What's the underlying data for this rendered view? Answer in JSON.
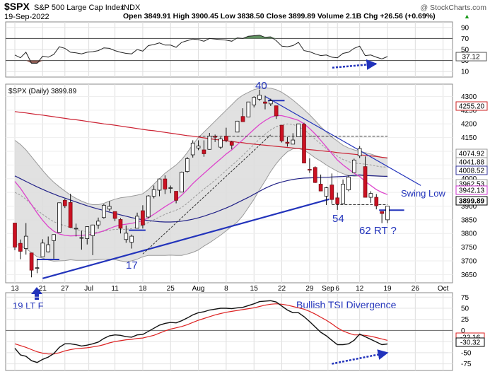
{
  "header": {
    "symbol": "$SPX",
    "name": "S&P 500 Large Cap Index",
    "exchange": "INDX",
    "date": "19-Sep-2022",
    "ohlc": "Open 3849.91  High 3900.45  Low 3838.50  Close 3899.89  Volume 2.1B  Chg +26.56 (+0.69%)",
    "arrow": "▲",
    "watermark": "@ StockCharts.com"
  },
  "rsi_panel": {
    "ticks": [
      "90",
      "70",
      "50",
      "30",
      "10"
    ],
    "last_label": "37.12",
    "last_value": 37.12
  },
  "price_panel": {
    "legend": "$SPX (Daily) 3899.89",
    "ticks": [
      "4300",
      "4250",
      "4200",
      "4150",
      "4100",
      "4050",
      "4000",
      "3950",
      "3900",
      "3850",
      "3800",
      "3750",
      "3700",
      "3650"
    ],
    "tags": [
      "4255.20",
      "4074.92",
      "4041.88",
      "4008.52",
      "3962.53",
      "3942.13",
      "3899.89"
    ],
    "tag_values": [
      4255.2,
      4074.92,
      4041.88,
      4008.52,
      3962.53,
      3942.13,
      3899.89
    ],
    "tag_colors": [
      "#cc2222",
      "#999999",
      "#999999",
      "#333399",
      "#999999",
      "#cc33cc",
      "#000000"
    ],
    "annotations": {
      "label_40": "40",
      "label_17": "17",
      "label_54": "54",
      "label_62": "62 RT ?",
      "swing_low": "Swing Low"
    }
  },
  "x_axis": {
    "labels": [
      "13",
      "21",
      "27",
      "Jul",
      "11",
      "18",
      "25",
      "Aug",
      "8",
      "15",
      "22",
      "29",
      "Sep",
      "6",
      "12",
      "19",
      "26",
      "Oct"
    ]
  },
  "tsi_panel": {
    "ticks": [
      "75",
      "50",
      "25",
      "0",
      "-25",
      "-50",
      "-75"
    ],
    "tags": [
      "-22.16",
      "-30.32"
    ],
    "tag_values": [
      -22.16,
      -30.32
    ],
    "annotation": "Bullish TSI Divergence",
    "note": "19 LT F"
  },
  "colors": {
    "up": "#ffffff",
    "down": "#cc1122",
    "annotation": "#2233bb",
    "ma_red": "#cc2233",
    "ma_blue": "#222288",
    "ma_magenta": "#dd44cc"
  },
  "chart_data": {
    "type": "line",
    "x": [
      "2022-06-13",
      "2022-06-14",
      "2022-06-15",
      "2022-06-16",
      "2022-06-17",
      "2022-06-21",
      "2022-06-22",
      "2022-06-23",
      "2022-06-24",
      "2022-06-27",
      "2022-06-28",
      "2022-06-29",
      "2022-06-30",
      "2022-07-01",
      "2022-07-05",
      "2022-07-06",
      "2022-07-07",
      "2022-07-08",
      "2022-07-11",
      "2022-07-12",
      "2022-07-13",
      "2022-07-14",
      "2022-07-15",
      "2022-07-18",
      "2022-07-19",
      "2022-07-20",
      "2022-07-21",
      "2022-07-22",
      "2022-07-25",
      "2022-07-26",
      "2022-07-27",
      "2022-07-28",
      "2022-07-29",
      "2022-08-01",
      "2022-08-02",
      "2022-08-03",
      "2022-08-04",
      "2022-08-05",
      "2022-08-08",
      "2022-08-09",
      "2022-08-10",
      "2022-08-11",
      "2022-08-12",
      "2022-08-15",
      "2022-08-16",
      "2022-08-17",
      "2022-08-18",
      "2022-08-19",
      "2022-08-22",
      "2022-08-23",
      "2022-08-24",
      "2022-08-25",
      "2022-08-26",
      "2022-08-29",
      "2022-08-30",
      "2022-08-31",
      "2022-09-01",
      "2022-09-02",
      "2022-09-06",
      "2022-09-07",
      "2022-09-08",
      "2022-09-09",
      "2022-09-12",
      "2022-09-13",
      "2022-09-14",
      "2022-09-15",
      "2022-09-16",
      "2022-09-19"
    ],
    "series": [
      {
        "name": "$SPX",
        "values": [
          3750,
          3735,
          3790,
          3666,
          3675,
          3765,
          3759,
          3796,
          3912,
          3901,
          3822,
          3819,
          3785,
          3825,
          3831,
          3845,
          3903,
          3899,
          3855,
          3819,
          3801,
          3790,
          3863,
          3831,
          3937,
          3960,
          3999,
          3962,
          3967,
          3921,
          4024,
          4073,
          4130,
          4119,
          4091,
          4155,
          4152,
          4145,
          4140,
          4122,
          4210,
          4208,
          4280,
          4297,
          4305,
          4275,
          4284,
          4229,
          4138,
          4129,
          4141,
          4200,
          4057,
          4031,
          3986,
          3955,
          3967,
          3924,
          3908,
          3980,
          4006,
          4068,
          4110,
          3932,
          3946,
          3901,
          3873,
          3900
        ]
      }
    ],
    "ohlc": {
      "open": [
        3838,
        3764,
        3745,
        3729,
        3675,
        3715,
        3733,
        3774,
        3804,
        3921,
        3913,
        3819,
        3785,
        3781,
        3792,
        3831,
        3858,
        3889,
        3880,
        3851,
        3778,
        3768,
        3819,
        3883,
        3860,
        3936,
        3958,
        3999,
        3966,
        3954,
        3951,
        4026,
        4087,
        4112,
        4105,
        4107,
        4154,
        4115,
        4155,
        4134,
        4170,
        4227,
        4225,
        4269,
        4290,
        4280,
        4273,
        4266,
        4195,
        4133,
        4126,
        4153,
        4199,
        4034,
        4041,
        3980,
        3936,
        3977,
        3930,
        3909,
        3959,
        4022,
        4083,
        4044,
        3932,
        3932,
        3880,
        3850
      ],
      "high": [
        3838,
        3778,
        3838,
        3729,
        3708,
        3779,
        3789,
        3797,
        3913,
        3927,
        3945,
        3836,
        3810,
        3826,
        3832,
        3858,
        3907,
        3918,
        3880,
        3856,
        3829,
        3796,
        3876,
        3903,
        3940,
        3975,
        4000,
        4012,
        3975,
        3954,
        4026,
        4079,
        4140,
        4140,
        4140,
        4167,
        4161,
        4152,
        4186,
        4138,
        4211,
        4257,
        4280,
        4301,
        4325,
        4303,
        4292,
        4266,
        4196,
        4152,
        4166,
        4200,
        4204,
        4074,
        4045,
        4015,
        3970,
        4019,
        3949,
        3997,
        4012,
        4073,
        4119,
        4081,
        3954,
        3944,
        3880,
        3901
      ],
      "low": [
        3739,
        3706,
        3723,
        3640,
        3655,
        3715,
        3731,
        3708,
        3804,
        3893,
        3820,
        3789,
        3741,
        3760,
        3721,
        3817,
        3854,
        3882,
        3845,
        3800,
        3766,
        3745,
        3819,
        3818,
        3855,
        3928,
        3936,
        3944,
        3947,
        3910,
        3951,
        4022,
        4077,
        4104,
        4080,
        4106,
        4134,
        4108,
        4133,
        4107,
        4170,
        4207,
        4225,
        4260,
        4284,
        4253,
        4265,
        4218,
        4132,
        4117,
        4126,
        4153,
        4057,
        4021,
        3984,
        3954,
        3904,
        3908,
        3886,
        3909,
        3954,
        4022,
        4075,
        3932,
        3912,
        3888,
        3838,
        3838
      ],
      "close": [
        3750,
        3735,
        3790,
        3666,
        3675,
        3765,
        3759,
        3796,
        3912,
        3901,
        3822,
        3819,
        3785,
        3825,
        3831,
        3845,
        3903,
        3899,
        3855,
        3819,
        3801,
        3790,
        3863,
        3831,
        3937,
        3960,
        3999,
        3962,
        3967,
        3921,
        4024,
        4073,
        4130,
        4119,
        4091,
        4155,
        4152,
        4145,
        4140,
        4122,
        4210,
        4208,
        4280,
        4297,
        4305,
        4275,
        4284,
        4229,
        4138,
        4129,
        4141,
        4200,
        4057,
        4031,
        3986,
        3955,
        3967,
        3924,
        3908,
        3980,
        4006,
        4068,
        4110,
        3932,
        3946,
        3901,
        3873,
        3900
      ]
    },
    "moving_averages": {
      "ma_red_long": [
        4245,
        4242,
        4240,
        4237,
        4234,
        4232,
        4229,
        4226,
        4223,
        4220,
        4217,
        4215,
        4212,
        4209,
        4206,
        4203,
        4200,
        4198,
        4195,
        4192,
        4189,
        4186,
        4183,
        4180,
        4177,
        4175,
        4172,
        4169,
        4166,
        4163,
        4160,
        4157,
        4155,
        4152,
        4149,
        4146,
        4143,
        4141,
        4138,
        4136,
        4133,
        4131,
        4128,
        4126,
        4124,
        4122,
        4120,
        4118,
        4116,
        4114,
        4112,
        4110,
        4108,
        4106,
        4104,
        4102,
        4100,
        4098,
        4095,
        4093,
        4091,
        4089,
        4087,
        4085,
        4083,
        4081,
        4078,
        4076
      ],
      "ma_blue_mid": [
        4010,
        4000,
        3990,
        3980,
        3970,
        3961,
        3952,
        3944,
        3936,
        3929,
        3922,
        3915,
        3908,
        3901,
        3895,
        3889,
        3884,
        3878,
        3873,
        3868,
        3863,
        3858,
        3854,
        3850,
        3847,
        3845,
        3843,
        3842,
        3842,
        3843,
        3845,
        3848,
        3852,
        3857,
        3863,
        3870,
        3877,
        3885,
        3893,
        3902,
        3912,
        3922,
        3932,
        3943,
        3954,
        3965,
        3974,
        3982,
        3988,
        3993,
        3997,
        4000,
        4002,
        4003,
        4004,
        4005,
        4005,
        4006,
        4007,
        4008,
        4010,
        4012,
        4014,
        4012,
        4011,
        4010,
        4009,
        4008
      ],
      "ma_magenta_fast": [
        3990,
        3965,
        3935,
        3905,
        3875,
        3848,
        3825,
        3808,
        3798,
        3793,
        3791,
        3792,
        3793,
        3795,
        3798,
        3803,
        3810,
        3818,
        3826,
        3831,
        3834,
        3837,
        3841,
        3847,
        3857,
        3870,
        3884,
        3898,
        3910,
        3922,
        3940,
        3960,
        3982,
        4001,
        4019,
        4037,
        4055,
        4072,
        4090,
        4105,
        4124,
        4142,
        4161,
        4180,
        4198,
        4212,
        4224,
        4231,
        4230,
        4225,
        4219,
        4213,
        4200,
        4183,
        4163,
        4140,
        4116,
        4092,
        4068,
        4050,
        4035,
        4020,
        4008,
        3990,
        3975,
        3960,
        3950,
        3942
      ],
      "bb_mid": [
        3950,
        3940,
        3925,
        3905,
        3885,
        3870,
        3855,
        3843,
        3835,
        3828,
        3822,
        3815,
        3810,
        3806,
        3804,
        3805,
        3808,
        3812,
        3815,
        3815,
        3815,
        3818,
        3823,
        3830,
        3840,
        3850,
        3860,
        3870,
        3878,
        3885,
        3895,
        3910,
        3928,
        3945,
        3962,
        3978,
        3995,
        4012,
        4030,
        4048,
        4066,
        4085,
        4105,
        4125,
        4145,
        4162,
        4178,
        4190,
        4197,
        4200,
        4198,
        4190,
        4178,
        4162,
        4144,
        4127,
        4110,
        4095,
        4082,
        4070,
        4062,
        4057,
        4055,
        4053,
        4050,
        4046,
        4043,
        4042
      ],
      "bb_upper": [
        4140,
        4125,
        4105,
        4080,
        4055,
        4030,
        4007,
        3987,
        3970,
        3955,
        3940,
        3928,
        3918,
        3910,
        3905,
        3905,
        3910,
        3918,
        3925,
        3930,
        3933,
        3936,
        3940,
        3945,
        3960,
        3980,
        4000,
        4020,
        4035,
        4050,
        4070,
        4095,
        4125,
        4150,
        4170,
        4190,
        4210,
        4230,
        4250,
        4270,
        4290,
        4305,
        4315,
        4325,
        4330,
        4332,
        4330,
        4325,
        4315,
        4302,
        4287,
        4270,
        4252,
        4233,
        4212,
        4190,
        4170,
        4152,
        4137,
        4122,
        4112,
        4105,
        4100,
        4095,
        4090,
        4083,
        4078,
        4074
      ],
      "bb_lower": [
        3760,
        3755,
        3745,
        3730,
        3715,
        3710,
        3703,
        3699,
        3700,
        3701,
        3704,
        3702,
        3702,
        3702,
        3703,
        3705,
        3706,
        3706,
        3705,
        3700,
        3697,
        3700,
        3706,
        3715,
        3720,
        3720,
        3720,
        3720,
        3721,
        3720,
        3720,
        3725,
        3731,
        3740,
        3754,
        3766,
        3780,
        3794,
        3810,
        3826,
        3842,
        3865,
        3895,
        3925,
        3960,
        3992,
        4026,
        4055,
        4079,
        4098,
        4109,
        4110,
        4104,
        4091,
        4076,
        4064,
        4050,
        4038,
        4027,
        4018,
        4012,
        4009,
        4010,
        4011,
        4010,
        4009,
        4008,
        4010
      ]
    },
    "rsi": [
      40,
      35,
      45,
      25,
      25,
      38,
      36,
      41,
      55,
      52,
      45,
      44,
      42,
      45,
      46,
      48,
      53,
      52,
      48,
      45,
      43,
      42,
      50,
      47,
      57,
      59,
      62,
      58,
      58,
      54,
      63,
      66,
      69,
      68,
      65,
      70,
      69,
      68,
      67,
      65,
      71,
      70,
      74,
      75,
      76,
      72,
      73,
      66,
      56,
      55,
      57,
      63,
      48,
      46,
      42,
      39,
      40,
      36,
      35,
      43,
      45,
      52,
      56,
      39,
      40,
      36,
      33,
      37.12
    ],
    "tsi": [
      -40,
      -55,
      -58,
      -68,
      -72,
      -65,
      -60,
      -52,
      -38,
      -30,
      -30,
      -32,
      -35,
      -33,
      -30,
      -26,
      -18,
      -12,
      -10,
      -11,
      -14,
      -15,
      -10,
      -9,
      -2,
      5,
      12,
      16,
      18,
      17,
      22,
      28,
      35,
      40,
      42,
      46,
      48,
      50,
      50,
      49,
      51,
      52,
      56,
      60,
      65,
      66,
      67,
      64,
      55,
      46,
      40,
      40,
      31,
      20,
      8,
      -4,
      -12,
      -22,
      -32,
      -32,
      -30,
      -22,
      -8,
      -14,
      -20,
      -26,
      -32,
      -30.32
    ],
    "tsi_signal": [
      -30,
      -34,
      -38,
      -43,
      -48,
      -51,
      -53,
      -53,
      -50,
      -46,
      -43,
      -41,
      -40,
      -39,
      -37,
      -35,
      -32,
      -28,
      -25,
      -23,
      -21,
      -20,
      -18,
      -17,
      -14,
      -11,
      -6,
      -1,
      3,
      6,
      9,
      13,
      18,
      23,
      27,
      31,
      35,
      38,
      41,
      43,
      45,
      47,
      49,
      51,
      54,
      57,
      59,
      60,
      59,
      57,
      54,
      51,
      48,
      43,
      37,
      30,
      23,
      15,
      6,
      -1,
      -6,
      -10,
      -10,
      -11,
      -13,
      -16,
      -19,
      -22.16
    ],
    "price_range": [
      3620,
      4345
    ],
    "rsi_range": [
      0,
      100
    ],
    "tsi_range": [
      -90,
      85
    ],
    "grid": true
  }
}
